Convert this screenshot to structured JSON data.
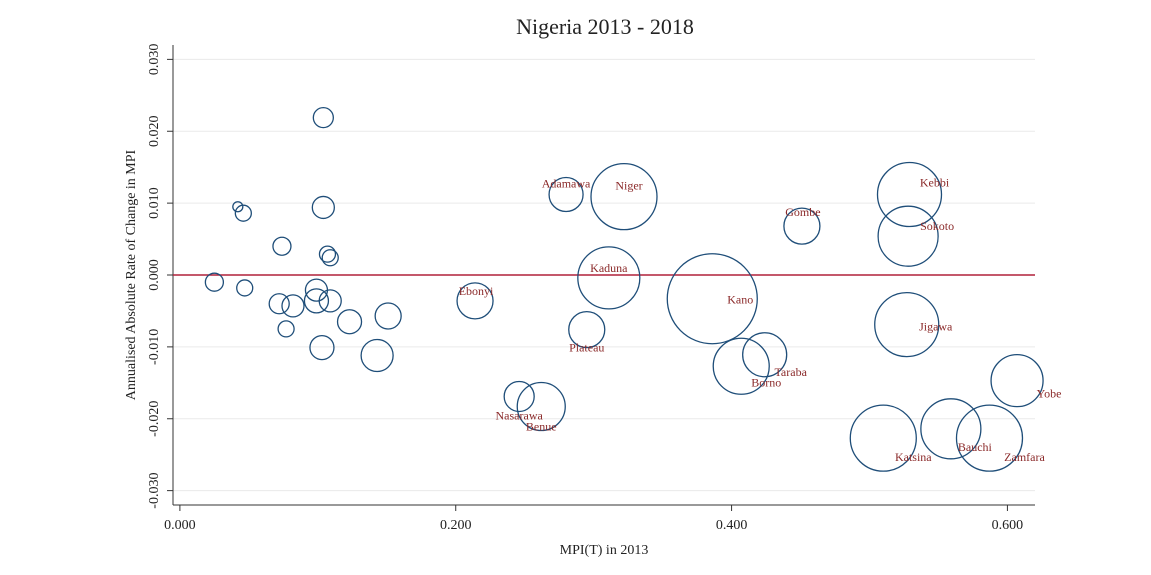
{
  "chart_data": {
    "type": "bubble",
    "title": "Nigeria 2013 - 2018",
    "x_label": "MPI(T) in 2013",
    "y_label": "Annualised Absolute Rate of Change in MPI",
    "x": [
      0.104,
      0.042,
      0.046,
      0.104,
      0.074,
      0.107,
      0.109,
      0.025,
      0.047,
      0.099,
      0.072,
      0.082,
      0.099,
      0.109,
      0.077,
      0.123,
      0.151,
      0.103,
      0.143,
      0.28,
      0.322,
      0.529,
      0.451,
      0.528,
      0.311,
      0.214,
      0.386,
      0.527,
      0.295,
      0.424,
      0.407,
      0.607,
      0.246,
      0.262,
      0.51,
      0.559,
      0.587
    ],
    "y": [
      0.0219,
      0.0095,
      0.0086,
      0.0094,
      0.004,
      0.0029,
      0.0024,
      -0.001,
      -0.0018,
      -0.0021,
      -0.004,
      -0.0043,
      -0.0036,
      -0.0036,
      -0.0075,
      -0.0065,
      -0.0057,
      -0.0101,
      -0.0112,
      0.0112,
      0.0109,
      0.0112,
      0.0068,
      0.0054,
      -0.0004,
      -0.0036,
      -0.0033,
      -0.0069,
      -0.0076,
      -0.0111,
      -0.0127,
      -0.0147,
      -0.0169,
      -0.0183,
      -0.0227,
      -0.0214,
      -0.0227
    ],
    "sizes": [
      100,
      25,
      64,
      121,
      81,
      64,
      64,
      81,
      64,
      121,
      100,
      121,
      144,
      121,
      64,
      144,
      169,
      144,
      256,
      289,
      1089,
      1024,
      324,
      900,
      961,
      324,
      2025,
      1024,
      324,
      484,
      784,
      676,
      225,
      576,
      1089,
      900,
      1089
    ],
    "labels": [
      null,
      null,
      null,
      null,
      null,
      null,
      null,
      null,
      null,
      null,
      null,
      null,
      null,
      null,
      null,
      null,
      null,
      null,
      null,
      "Adamawa",
      "Niger",
      "Kebbi",
      "Gombe",
      "Sokoto",
      "Kaduna",
      "Ebonyi",
      "Kano",
      "Jigawa",
      "Plateau",
      "Taraba",
      "Borno",
      "Yobe",
      "Nasarawa",
      "Benue",
      "Katsina",
      "Bauchi",
      "Zamfara"
    ],
    "color": "#1f4e79",
    "label_color": "#8b2a2a",
    "yline": 0,
    "yline_color": "#b0203a",
    "xlim": [
      -0.005,
      0.62
    ],
    "ylim": [
      -0.032,
      0.032
    ],
    "xticks": [
      {
        "value": 0,
        "label": "0.000"
      },
      {
        "value": 0.2,
        "label": "0.200"
      },
      {
        "value": 0.4,
        "label": "0.400"
      },
      {
        "value": 0.6,
        "label": "0.600"
      }
    ],
    "yticks": [
      {
        "value": -0.03,
        "label": "-0.030"
      },
      {
        "value": -0.02,
        "label": "-0.020"
      },
      {
        "value": -0.01,
        "label": "-0.010"
      },
      {
        "value": 0,
        "label": "0.000"
      },
      {
        "value": 0.01,
        "label": "0.010"
      },
      {
        "value": 0.02,
        "label": "0.020"
      },
      {
        "value": 0.03,
        "label": "0.030"
      }
    ],
    "grid": true
  }
}
